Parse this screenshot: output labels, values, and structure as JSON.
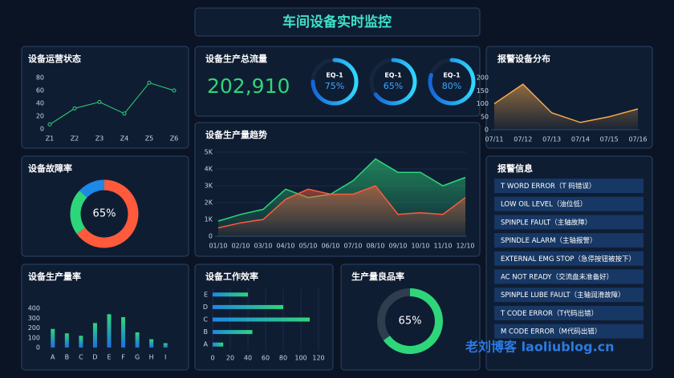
{
  "title": "车间设备实时监控",
  "chart_data": [
    {
      "type": "line",
      "title": "设备运营状态",
      "categories": [
        "Z1",
        "Z2",
        "Z3",
        "Z4",
        "Z5",
        "Z6"
      ],
      "values": [
        7,
        32,
        42,
        24,
        72,
        60
      ],
      "color": "#2ed67a",
      "ylim": [
        0,
        80
      ],
      "yticks": [
        0,
        20,
        40,
        60,
        80
      ],
      "grid": false
    },
    {
      "type": "pie",
      "title": "设备故障率",
      "values": [
        65,
        22,
        13
      ],
      "colors": [
        "#ff5a3c",
        "#2ed67a",
        "#1e88e5"
      ],
      "center_label": "65%"
    },
    {
      "type": "bar",
      "title": "设备生产量率",
      "categories": [
        "A",
        "B",
        "C",
        "D",
        "E",
        "F",
        "G",
        "H",
        "I"
      ],
      "values": [
        190,
        145,
        120,
        250,
        340,
        310,
        155,
        85,
        45
      ],
      "colors": [
        "#2ed67a",
        "#1e6fe0"
      ],
      "ylim": [
        0,
        400
      ],
      "yticks": [
        0,
        100,
        200,
        300,
        400
      ],
      "grid": false
    },
    {
      "type": "area",
      "title": "设备生产量趋势",
      "categories": [
        "01/10",
        "02/10",
        "03/10",
        "04/10",
        "05/10",
        "06/10",
        "07/10",
        "08/10",
        "09/10",
        "10/10",
        "11/10",
        "12/10"
      ],
      "series": [
        {
          "color": "#2ed67a",
          "values": [
            900,
            1300,
            1600,
            2800,
            2300,
            2500,
            3300,
            4600,
            3800,
            3800,
            3000,
            3500
          ]
        },
        {
          "color": "#ff5a3c",
          "values": [
            500,
            800,
            1000,
            2200,
            2800,
            2500,
            2500,
            3000,
            1300,
            1400,
            1300,
            2300
          ]
        }
      ],
      "ylim": [
        0,
        5000
      ],
      "yticks": [
        0,
        {
          "value": 1000,
          "label": "1K"
        },
        {
          "value": 2000,
          "label": "2K"
        },
        {
          "value": 3000,
          "label": "3K"
        },
        {
          "value": 4000,
          "label": "4K"
        },
        {
          "value": 5000,
          "label": "5K"
        }
      ],
      "grid": true
    },
    {
      "type": "hbar",
      "title": "设备工作效率",
      "categories": [
        "E",
        "D",
        "C",
        "B",
        "A"
      ],
      "values": [
        40,
        80,
        110,
        45,
        12
      ],
      "colors": [
        "#1e88e5",
        "#2ed67a"
      ],
      "xlim": [
        0,
        120
      ],
      "xticks": [
        0,
        20,
        40,
        60,
        80,
        100,
        120
      ],
      "grid": true
    },
    {
      "type": "progress",
      "title": "生产量良品率",
      "values": [
        65
      ],
      "value_labels": [
        "65%"
      ],
      "color": "#2ed67a",
      "ylim": [
        0,
        100
      ]
    },
    {
      "type": "area",
      "title": "报警设备分布",
      "categories": [
        "07/11",
        "07/12",
        "07/13",
        "07/14",
        "07/15",
        "07/16"
      ],
      "series": [
        {
          "color": "#f7a94a",
          "values": [
            100,
            175,
            65,
            28,
            50,
            80
          ]
        }
      ],
      "ylim": [
        0,
        200
      ],
      "yticks": [
        0,
        50,
        100,
        150,
        200
      ],
      "grid": false
    },
    {
      "type": "gauge",
      "title": "设备生产总流量",
      "total": 202910,
      "total_label": "202,910",
      "categories": [
        "EQ-1",
        "EQ-1",
        "EQ-1"
      ],
      "values": [
        75,
        65,
        80
      ],
      "value_labels": [
        "75%",
        "65%",
        "80%"
      ],
      "color": "#1e9bff",
      "ylim": [
        0,
        100
      ]
    }
  ],
  "alerts": {
    "title": "报警信息",
    "items": [
      "T WORD ERROR（T 码错误）",
      "LOW OIL LEVEL（油位低）",
      "SPINPLE FAULT（主轴故障）",
      "SPINDLE ALARM（主轴报警）",
      "EXTERNAL EMG STOP（急停按钮被按下）",
      "AC NOT READY（交流盘未准备好）",
      "SPINPLE LUBE FAULT（主轴润滑故障）",
      "T CODE ERROR（T代码出错）",
      "M CODE ERROR（M代码出错）"
    ]
  },
  "watermark": "老刘博客 laoliublog.cn"
}
